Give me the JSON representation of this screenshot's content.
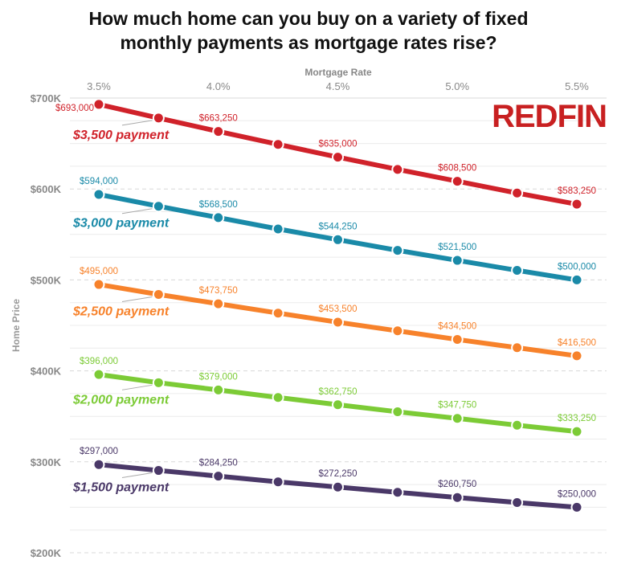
{
  "chart_data": {
    "type": "line",
    "title": "How much home can you buy on a variety of fixed monthly payments as mortgage rates rise?",
    "xlabel": "Mortgage Rate",
    "ylabel": "Home Price",
    "x": [
      3.5,
      3.75,
      4.0,
      4.25,
      4.5,
      4.75,
      5.0,
      5.25,
      5.5
    ],
    "x_ticks": [
      3.5,
      4.0,
      4.5,
      5.0,
      5.5
    ],
    "x_tick_labels": [
      "3.5%",
      "4.0%",
      "4.5%",
      "5.0%",
      "5.5%"
    ],
    "x_axis_position": "top",
    "y_ticks": [
      700000,
      600000,
      500000,
      400000,
      300000,
      200000
    ],
    "y_tick_labels": [
      "$700K",
      "$600K",
      "$500K",
      "$400K",
      "$300K",
      "$200K"
    ],
    "ylim": [
      200000,
      700000
    ],
    "grid": true,
    "logo": "REDFIN",
    "series": [
      {
        "name": "$3,500 payment",
        "color": "#d0222a",
        "values": [
          693000,
          678000,
          663250,
          649000,
          635000,
          621500,
          608500,
          595500,
          583250
        ],
        "labels": [
          "$693,000",
          "",
          "$663,250",
          "",
          "$635,000",
          "",
          "$608,500",
          "",
          "$583,250"
        ]
      },
      {
        "name": "$3,000 payment",
        "color": "#1a8aa8",
        "values": [
          594000,
          581000,
          568500,
          556000,
          544250,
          532500,
          521500,
          510500,
          500000
        ],
        "labels": [
          "$594,000",
          "",
          "$568,500",
          "",
          "$544,250",
          "",
          "$521,500",
          "",
          "$500,000"
        ]
      },
      {
        "name": "$2,500 payment",
        "color": "#f7822b",
        "values": [
          495000,
          484000,
          473750,
          463500,
          453500,
          444000,
          434500,
          425500,
          416500
        ],
        "labels": [
          "$495,000",
          "",
          "$473,750",
          "",
          "$453,500",
          "",
          "$434,500",
          "",
          "$416,500"
        ]
      },
      {
        "name": "$2,000 payment",
        "color": "#7ccb36",
        "values": [
          396000,
          387000,
          379000,
          370750,
          362750,
          355000,
          347750,
          340250,
          333250
        ],
        "labels": [
          "$396,000",
          "",
          "$379,000",
          "",
          "$362,750",
          "",
          "$347,750",
          "",
          "$333,250"
        ]
      },
      {
        "name": "$1,500 payment",
        "color": "#4a3868",
        "values": [
          297000,
          290500,
          284250,
          278000,
          272250,
          266500,
          260750,
          255250,
          250000
        ],
        "labels": [
          "$297,000",
          "",
          "$284,250",
          "",
          "$272,250",
          "",
          "$260,750",
          "",
          "$250,000"
        ]
      }
    ]
  }
}
